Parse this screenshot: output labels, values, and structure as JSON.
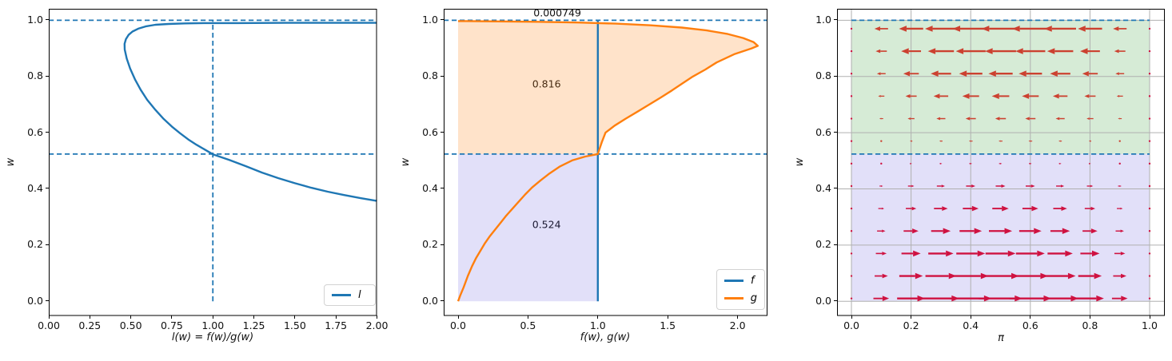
{
  "figure": {
    "bg": "#ffffff"
  },
  "colors": {
    "blue": "#1f77b4",
    "orange": "#ff7f0e",
    "dashed": "#1f77b4",
    "purple_fill": "rgba(75,60,220,0.16)",
    "green_fill": "rgba(0,128,0,0.16)",
    "orange_fill": "rgba(255,127,14,0.22)",
    "grid": "#b0b0b0",
    "spine": "#000000",
    "arrow_left": "#cc4130",
    "arrow_right": "#cf1241"
  },
  "chart_data": [
    {
      "id": "ax1",
      "type": "line",
      "xlabel": "l(w) = f(w)/g(w)",
      "ylabel": "w",
      "xlim": [
        0,
        2
      ],
      "ylim": [
        -0.052,
        1.0409
      ],
      "grid": false,
      "xticks": {
        "values": [
          0,
          0.25,
          0.5,
          0.75,
          1,
          1.25,
          1.5,
          1.75,
          2
        ],
        "labels": [
          "0.00",
          "0.25",
          "0.50",
          "0.75",
          "1.00",
          "1.25",
          "1.50",
          "1.75",
          "2.00"
        ]
      },
      "yticks": {
        "values": [
          0,
          0.2,
          0.4,
          0.6,
          0.8,
          1
        ],
        "labels": [
          "0.0",
          "0.2",
          "0.4",
          "0.6",
          "0.8",
          "1.0"
        ]
      },
      "legend": {
        "position": "lower right",
        "entries": [
          {
            "label": "l",
            "color_key": "blue"
          }
        ]
      },
      "guides": {
        "hlines_dashed": [
          {
            "y": 1.0
          },
          {
            "y": 0.524
          }
        ],
        "vlines_dashed": [
          {
            "x": 1.0,
            "y0": 0.0,
            "y1": 1.0
          }
        ]
      },
      "series": [
        {
          "name": "l",
          "color_key": "blue",
          "points": [
            [
              2.0,
              0.357
            ],
            [
              1.9,
              0.367
            ],
            [
              1.8,
              0.378
            ],
            [
              1.7,
              0.39
            ],
            [
              1.6,
              0.404
            ],
            [
              1.5,
              0.42
            ],
            [
              1.4,
              0.438
            ],
            [
              1.3,
              0.458
            ],
            [
              1.2,
              0.481
            ],
            [
              1.1,
              0.503
            ],
            [
              1.0,
              0.523
            ],
            [
              0.95,
              0.54
            ],
            [
              0.9,
              0.557
            ],
            [
              0.85,
              0.576
            ],
            [
              0.8,
              0.598
            ],
            [
              0.75,
              0.622
            ],
            [
              0.7,
              0.649
            ],
            [
              0.65,
              0.681
            ],
            [
              0.6,
              0.717
            ],
            [
              0.56,
              0.753
            ],
            [
              0.525,
              0.79
            ],
            [
              0.496,
              0.828
            ],
            [
              0.475,
              0.864
            ],
            [
              0.463,
              0.896
            ],
            [
              0.462,
              0.916
            ],
            [
              0.47,
              0.933
            ],
            [
              0.486,
              0.948
            ],
            [
              0.51,
              0.96
            ],
            [
              0.545,
              0.97
            ],
            [
              0.59,
              0.978
            ],
            [
              0.65,
              0.984
            ],
            [
              0.73,
              0.987
            ],
            [
              0.83,
              0.989
            ],
            [
              0.95,
              0.99
            ],
            [
              1.15,
              0.99
            ],
            [
              1.45,
              0.991
            ],
            [
              1.75,
              0.991
            ],
            [
              2.0,
              0.991
            ]
          ]
        }
      ]
    },
    {
      "id": "ax2",
      "type": "line",
      "xlabel": "f(w), g(w)",
      "ylabel": "w",
      "xlim": [
        -0.103,
        2.214
      ],
      "ylim": [
        -0.052,
        1.0409
      ],
      "grid": false,
      "xticks": {
        "values": [
          0,
          0.5,
          1,
          1.5,
          2
        ],
        "labels": [
          "0.0",
          "0.5",
          "1.0",
          "1.5",
          "2.0"
        ]
      },
      "yticks": {
        "values": [
          0,
          0.2,
          0.4,
          0.6,
          0.8,
          1
        ],
        "labels": [
          "0.0",
          "0.2",
          "0.4",
          "0.6",
          "0.8",
          "1.0"
        ]
      },
      "legend": {
        "position": "lower right",
        "entries": [
          {
            "label": "f",
            "color_key": "blue"
          },
          {
            "label": "g",
            "color_key": "orange"
          }
        ]
      },
      "guides": {
        "hlines_dashed": [
          {
            "y": 1.0
          },
          {
            "y": 0.524
          }
        ]
      },
      "fills": [
        {
          "name": "lower-region",
          "kind": "rect",
          "color_key": "purple_fill",
          "x0": 0,
          "x1": 1.0,
          "y0": 0,
          "y1": 0.524
        },
        {
          "name": "upper-region",
          "kind": "under-curve",
          "series": "g",
          "color_key": "orange_fill",
          "y0": 0.524,
          "y1": 1.0
        }
      ],
      "annotations": [
        {
          "text": "0.000749",
          "x": 0.71,
          "y": 1.026
        },
        {
          "text": "0.816",
          "x": 0.633,
          "y": 0.772
        },
        {
          "text": "0.524",
          "x": 0.633,
          "y": 0.272
        }
      ],
      "series": [
        {
          "name": "f",
          "color_key": "blue",
          "points": [
            [
              1.0,
              0.0
            ],
            [
              1.0,
              0.9985
            ]
          ]
        },
        {
          "name": "g",
          "color_key": "orange",
          "points": [
            [
              0.0,
              0.0
            ],
            [
              0.015,
              0.02
            ],
            [
              0.04,
              0.05
            ],
            [
              0.07,
              0.09
            ],
            [
              0.1,
              0.125
            ],
            [
              0.13,
              0.155
            ],
            [
              0.16,
              0.18
            ],
            [
              0.19,
              0.205
            ],
            [
              0.225,
              0.23
            ],
            [
              0.265,
              0.255
            ],
            [
              0.305,
              0.28
            ],
            [
              0.345,
              0.305
            ],
            [
              0.39,
              0.33
            ],
            [
              0.435,
              0.355
            ],
            [
              0.48,
              0.38
            ],
            [
              0.53,
              0.405
            ],
            [
              0.59,
              0.43
            ],
            [
              0.655,
              0.455
            ],
            [
              0.73,
              0.48
            ],
            [
              0.82,
              0.502
            ],
            [
              0.91,
              0.515
            ],
            [
              1.0,
              0.524
            ],
            [
              1.012,
              0.542
            ],
            [
              1.03,
              0.568
            ],
            [
              1.055,
              0.6
            ],
            [
              1.12,
              0.625
            ],
            [
              1.2,
              0.65
            ],
            [
              1.285,
              0.675
            ],
            [
              1.368,
              0.7
            ],
            [
              1.45,
              0.725
            ],
            [
              1.53,
              0.75
            ],
            [
              1.605,
              0.775
            ],
            [
              1.68,
              0.8
            ],
            [
              1.77,
              0.825
            ],
            [
              1.85,
              0.85
            ],
            [
              1.98,
              0.88
            ],
            [
              2.1,
              0.9
            ],
            [
              2.145,
              0.909
            ],
            [
              2.115,
              0.922
            ],
            [
              2.04,
              0.937
            ],
            [
              1.93,
              0.951
            ],
            [
              1.78,
              0.964
            ],
            [
              1.6,
              0.974
            ],
            [
              1.38,
              0.982
            ],
            [
              1.13,
              0.988
            ],
            [
              0.86,
              0.992
            ],
            [
              0.57,
              0.9945
            ],
            [
              0.28,
              0.996
            ],
            [
              0.06,
              0.997
            ],
            [
              0.0,
              0.9972
            ]
          ]
        }
      ]
    },
    {
      "id": "ax3",
      "type": "quiver",
      "xlabel": "π",
      "ylabel": "w",
      "xlim": [
        -0.0483,
        1.0509
      ],
      "ylim": [
        -0.052,
        1.0409
      ],
      "grid": true,
      "xticks": {
        "values": [
          0,
          0.2,
          0.4,
          0.6,
          0.8,
          1
        ],
        "labels": [
          "0.0",
          "0.2",
          "0.4",
          "0.6",
          "0.8",
          "1.0"
        ]
      },
      "yticks": {
        "values": [
          0,
          0.2,
          0.4,
          0.6,
          0.8,
          1
        ],
        "labels": [
          "0.0",
          "0.2",
          "0.4",
          "0.6",
          "0.8",
          "1.0"
        ]
      },
      "guides": {
        "hlines_dashed": [
          {
            "y": 1.0,
            "x0": 0,
            "x1": 1
          },
          {
            "y": 0.524,
            "x0": 0,
            "x1": 1
          }
        ]
      },
      "fills": [
        {
          "name": "upper-basin",
          "kind": "rect",
          "color_key": "green_fill",
          "x0": 0,
          "x1": 1,
          "y0": 0.524,
          "y1": 1.0
        },
        {
          "name": "lower-basin",
          "kind": "rect",
          "color_key": "purple_fill",
          "x0": 0,
          "x1": 1,
          "y0": 0.0,
          "y1": 0.524
        }
      ],
      "quiver": {
        "pi_values": [
          0,
          0.1,
          0.2,
          0.3,
          0.4,
          0.5,
          0.6,
          0.7,
          0.8,
          0.9,
          1.0
        ],
        "w_values": [
          0.01,
          0.09,
          0.17,
          0.25,
          0.33,
          0.41,
          0.49,
          0.57,
          0.65,
          0.73,
          0.81,
          0.89,
          0.97
        ],
        "wstar": 0.524,
        "u_formula": "u = pi*(1-pi)*(wstar - w)",
        "v": 0,
        "scale": 1.137
      }
    }
  ]
}
